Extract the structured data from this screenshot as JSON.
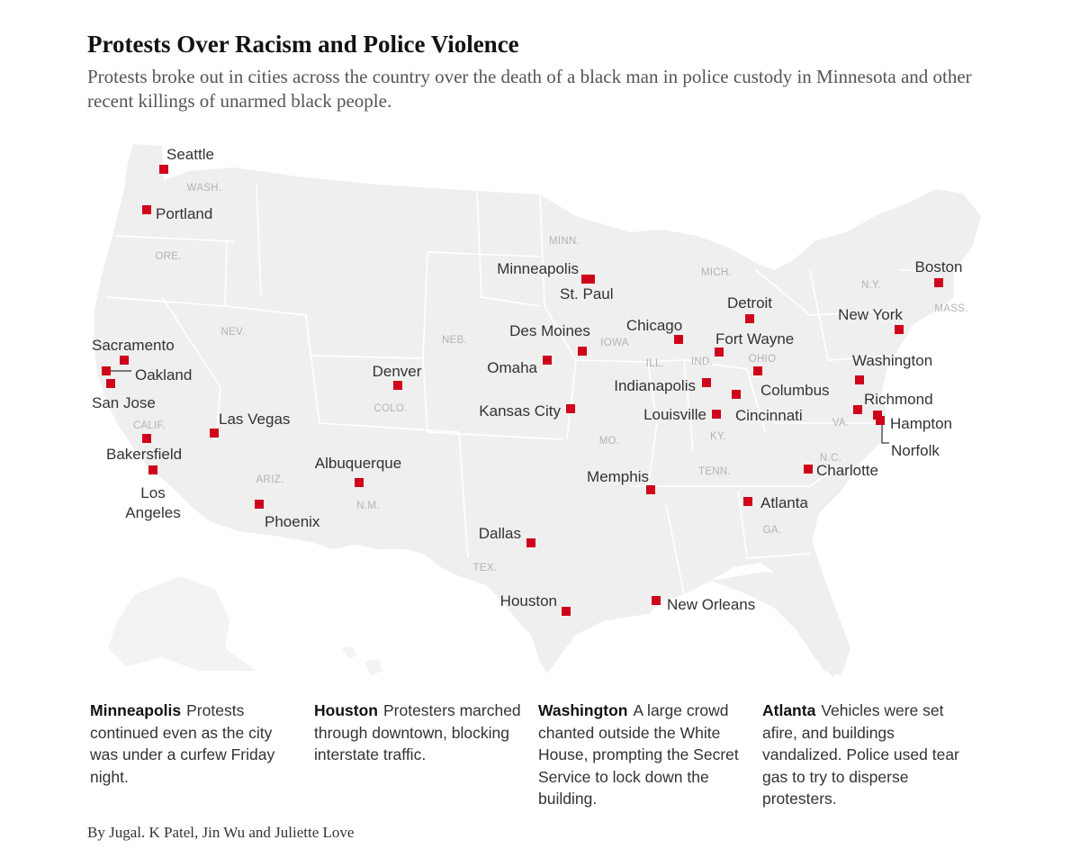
{
  "title": "Protests Over Racism and Police Violence",
  "subtitle": "Protests broke out in cities across the country over the death of a black man in police custody in Minnesota and other recent killings of unarmed black people.",
  "colors": {
    "marker": "#d0021b",
    "land": "#efefef",
    "borders": "#ffffff",
    "state_label": "#b3b3b3"
  },
  "map": {
    "cities": [
      {
        "name": "Seattle"
      },
      {
        "name": "Portland"
      },
      {
        "name": "Sacramento"
      },
      {
        "name": "Oakland"
      },
      {
        "name": "San Jose"
      },
      {
        "name": "Bakersfield"
      },
      {
        "name": "Los Angeles"
      },
      {
        "name": "Las Vegas"
      },
      {
        "name": "Phoenix"
      },
      {
        "name": "Albuquerque"
      },
      {
        "name": "Denver"
      },
      {
        "name": "Omaha"
      },
      {
        "name": "Des Moines"
      },
      {
        "name": "Minneapolis"
      },
      {
        "name": "St. Paul"
      },
      {
        "name": "Kansas City"
      },
      {
        "name": "Dallas"
      },
      {
        "name": "Houston"
      },
      {
        "name": "New Orleans"
      },
      {
        "name": "Memphis"
      },
      {
        "name": "Chicago"
      },
      {
        "name": "Indianapolis"
      },
      {
        "name": "Louisville"
      },
      {
        "name": "Cincinnati"
      },
      {
        "name": "Columbus"
      },
      {
        "name": "Fort Wayne"
      },
      {
        "name": "Detroit"
      },
      {
        "name": "Atlanta"
      },
      {
        "name": "Charlotte"
      },
      {
        "name": "Richmond"
      },
      {
        "name": "Hampton"
      },
      {
        "name": "Norfolk"
      },
      {
        "name": "Washington"
      },
      {
        "name": "New York"
      },
      {
        "name": "Boston"
      }
    ],
    "states": [
      "WASH.",
      "ORE.",
      "NEV.",
      "CALIF.",
      "ARIZ.",
      "COLO.",
      "N.M.",
      "NEB.",
      "IOWA",
      "MINN.",
      "MO.",
      "TEX.",
      "ILL.",
      "IND.",
      "OHIO",
      "KY.",
      "TENN.",
      "GA.",
      "N.C.",
      "VA.",
      "MICH.",
      "N.Y.",
      "MASS."
    ]
  },
  "notes": [
    {
      "city": "Minneapolis",
      "text": "Protests continued even as the city was under a curfew Friday night."
    },
    {
      "city": "Houston",
      "text": "Protesters marched through downtown, blocking interstate traffic."
    },
    {
      "city": "Washington",
      "text": "A large crowd chanted outside the White House, prompting the Secret Service to lock down the building."
    },
    {
      "city": "Atlanta",
      "text": "Vehicles were set afire, and buildings vandalized. Police used tear gas to try to disperse protesters."
    }
  ],
  "byline": "By Jugal. K Patel, Jin Wu and Juliette Love"
}
